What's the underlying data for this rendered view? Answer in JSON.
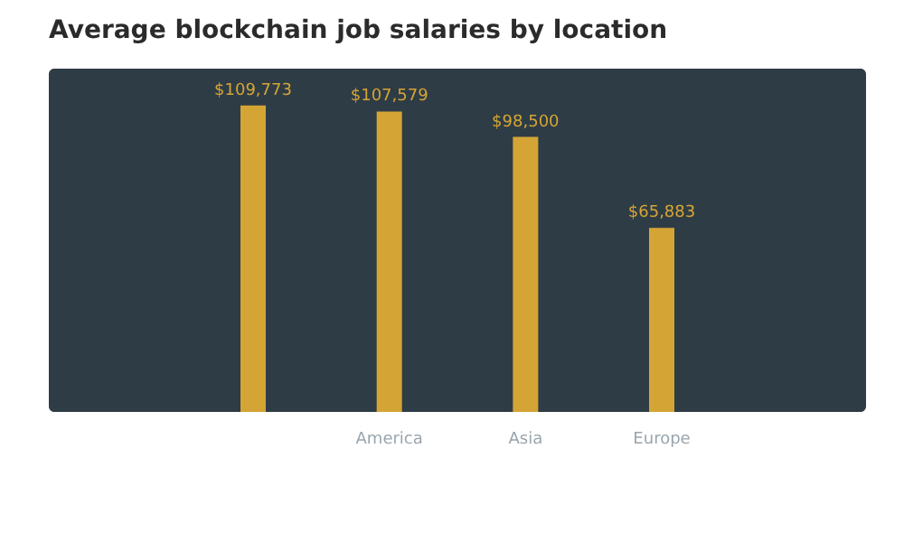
{
  "chart_data": {
    "type": "bar",
    "title": "Average blockchain job salaries by location",
    "categories": [
      null,
      "America",
      "Asia",
      "Europe"
    ],
    "values": [
      109773,
      107579,
      98500,
      65883
    ],
    "value_labels": [
      "$109,773",
      "$107,579",
      "$98,500",
      "$65,883"
    ],
    "color": "#d4a534",
    "grid": false
  }
}
